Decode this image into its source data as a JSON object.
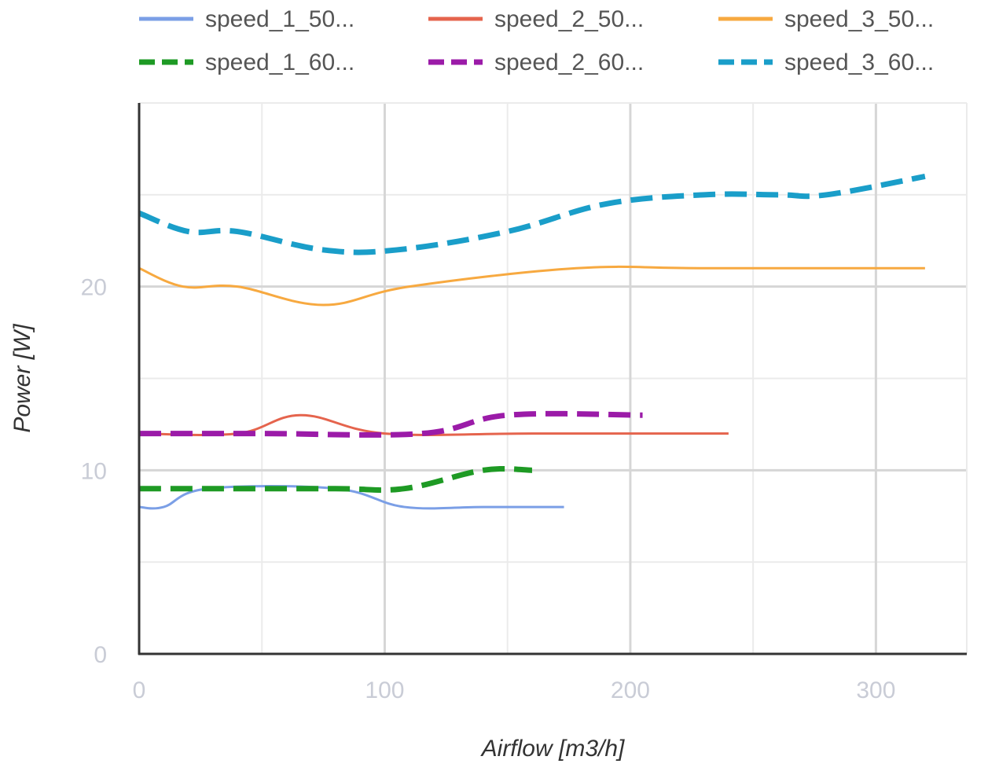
{
  "chart_data": {
    "type": "line",
    "title": "",
    "xlabel": "Airflow [m3/h]",
    "ylabel": "Power [W]",
    "xlim": [
      0,
      337
    ],
    "ylim": [
      0,
      30
    ],
    "x_ticks": [
      0,
      100,
      200,
      300
    ],
    "x_tick_labels": [
      "0",
      "100",
      "200",
      "300"
    ],
    "y_ticks": [
      0,
      10,
      20
    ],
    "y_tick_labels": [
      "0",
      "10",
      "20"
    ],
    "minor_x_gridlines": [
      50,
      150,
      250
    ],
    "minor_y_gridlines": [
      5,
      15,
      25
    ],
    "grid": true,
    "legend_position": "top",
    "series": [
      {
        "name": "speed_1_50...",
        "color": "#7b9fe6",
        "dash": "solid",
        "points": [
          [
            0,
            8
          ],
          [
            10,
            8
          ],
          [
            28,
            9
          ],
          [
            80,
            9
          ],
          [
            108,
            8
          ],
          [
            140,
            8
          ],
          [
            173,
            8
          ]
        ]
      },
      {
        "name": "speed_2_50...",
        "color": "#e5644d",
        "dash": "solid",
        "points": [
          [
            0,
            12
          ],
          [
            40,
            12
          ],
          [
            66,
            13
          ],
          [
            100,
            12
          ],
          [
            160,
            12
          ],
          [
            240,
            12
          ]
        ]
      },
      {
        "name": "speed_3_50...",
        "color": "#f7a940",
        "dash": "solid",
        "points": [
          [
            0,
            21
          ],
          [
            18,
            20
          ],
          [
            40,
            20
          ],
          [
            75,
            19
          ],
          [
            110,
            20
          ],
          [
            178,
            21
          ],
          [
            230,
            21
          ],
          [
            320,
            21
          ]
        ]
      },
      {
        "name": "speed_1_60...",
        "color": "#1e9a24",
        "dash": "dashed",
        "points": [
          [
            0,
            9
          ],
          [
            30,
            9
          ],
          [
            80,
            9
          ],
          [
            108,
            9
          ],
          [
            140,
            10
          ],
          [
            160,
            10
          ]
        ]
      },
      {
        "name": "speed_2_60...",
        "color": "#9b1ba8",
        "dash": "dashed",
        "points": [
          [
            0,
            12
          ],
          [
            50,
            12
          ],
          [
            115,
            12
          ],
          [
            150,
            13
          ],
          [
            205,
            13
          ]
        ]
      },
      {
        "name": "speed_3_60...",
        "color": "#1a9ec9",
        "dash": "dashed",
        "points": [
          [
            0,
            24
          ],
          [
            20,
            23
          ],
          [
            40,
            23
          ],
          [
            75,
            22
          ],
          [
            105,
            22
          ],
          [
            150,
            23
          ],
          [
            190,
            24.5
          ],
          [
            230,
            25
          ],
          [
            260,
            25
          ],
          [
            280,
            25
          ],
          [
            320,
            26
          ]
        ]
      }
    ]
  }
}
